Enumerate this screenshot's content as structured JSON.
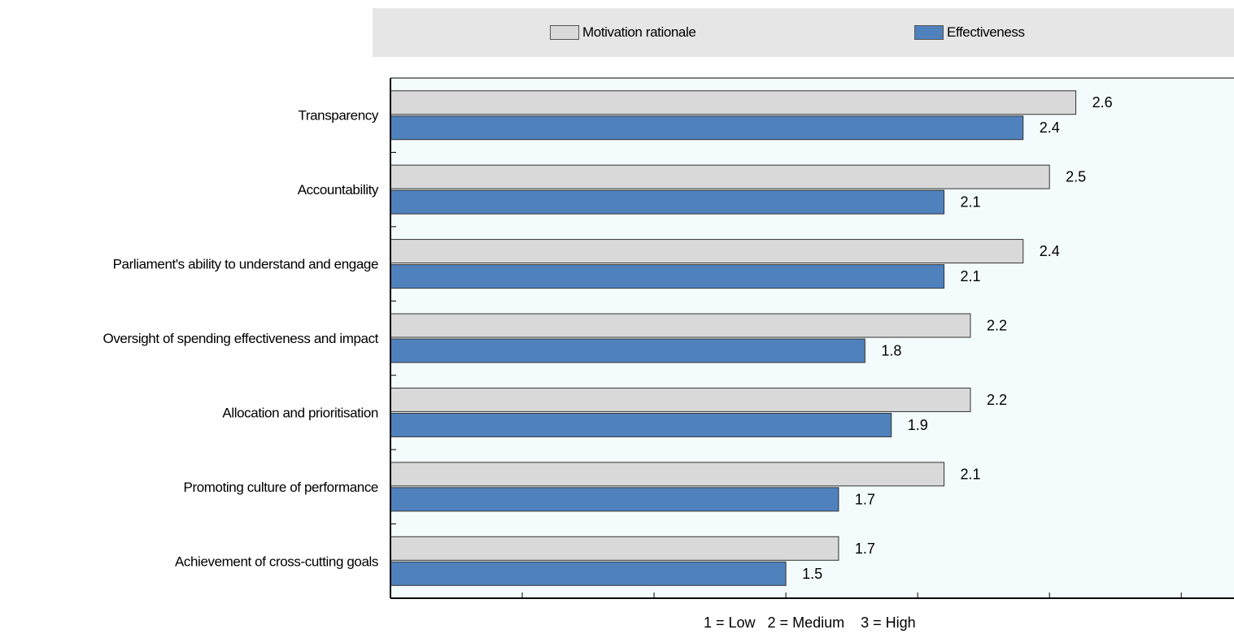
{
  "legend": {
    "motivation_label": "Motivation rationale",
    "effectiveness_label": "Effectiveness"
  },
  "scale_note": "1 = Low   2 = Medium    3 = High",
  "colors": {
    "motivation": "#d9d9d9",
    "effectiveness": "#4f81bd",
    "plot_background": "#f4fbfd",
    "legend_background": "#e6e6e6"
  },
  "chart_data": {
    "type": "bar",
    "orientation": "horizontal",
    "categories": [
      "Transparency",
      "Accountability",
      "Parliament's ability to understand and engage",
      "Oversight of spending effectiveness and impact",
      "Allocation and prioritisation",
      "Promoting culture of performance",
      "Achievement of cross-cutting goals"
    ],
    "series": [
      {
        "name": "Motivation rationale",
        "values": [
          2.6,
          2.5,
          2.4,
          2.2,
          2.2,
          2.1,
          1.7
        ]
      },
      {
        "name": "Effectiveness",
        "values": [
          2.4,
          2.1,
          2.1,
          1.8,
          1.9,
          1.7,
          1.5
        ]
      }
    ],
    "xlim": [
      0,
      3.2
    ],
    "grid": false,
    "legend_position": "top"
  }
}
